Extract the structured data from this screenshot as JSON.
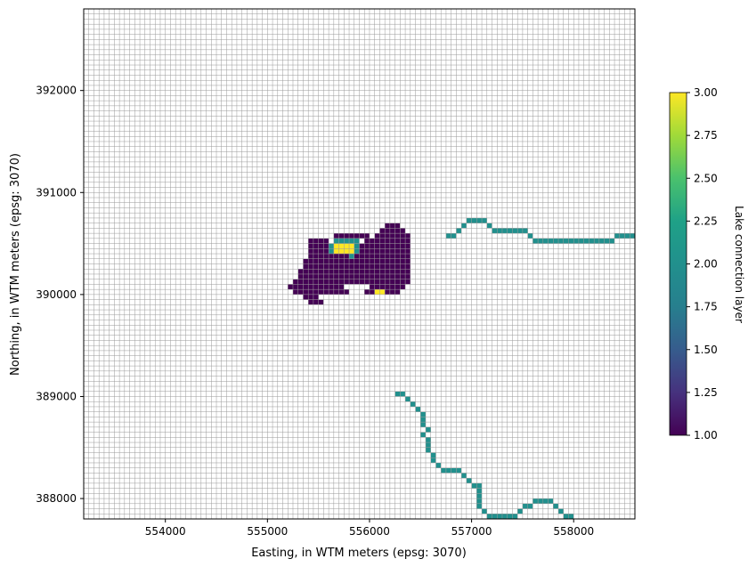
{
  "chart_data": {
    "type": "heatmap",
    "xlabel": "Easting, in WTM meters (epsg: 3070)",
    "ylabel": "Northing, in WTM meters (epsg: 3070)",
    "colorbar_label": "Lake connection layer",
    "xlim": [
      553200,
      558600
    ],
    "ylim": [
      387800,
      392800
    ],
    "xticks": [
      554000,
      555000,
      556000,
      557000,
      558000
    ],
    "yticks": [
      388000,
      389000,
      390000,
      391000,
      392000
    ],
    "clim": [
      1.0,
      3.0
    ],
    "colorbar_ticks": [
      "1.00",
      "1.25",
      "1.50",
      "1.75",
      "2.00",
      "2.25",
      "2.50",
      "2.75",
      "3.00"
    ],
    "colormap": "viridis",
    "colors": {
      "layer1": "#440154",
      "layer2": "#21908d",
      "layer3": "#fde725",
      "gridline": "#9a9a9a"
    },
    "grid": true,
    "cell_size_m": 50,
    "cells": {
      "layer1": [
        [
          555650,
          390550
        ],
        [
          555700,
          390550
        ],
        [
          555750,
          390550
        ],
        [
          555800,
          390550
        ],
        [
          555850,
          390550
        ],
        [
          555900,
          390550
        ],
        [
          555950,
          390550
        ],
        [
          556150,
          390650
        ],
        [
          556200,
          390650
        ],
        [
          556250,
          390650
        ],
        [
          556100,
          390600
        ],
        [
          556150,
          390600
        ],
        [
          556200,
          390600
        ],
        [
          556250,
          390600
        ],
        [
          556300,
          390600
        ],
        [
          556050,
          390550
        ],
        [
          556100,
          390550
        ],
        [
          556150,
          390550
        ],
        [
          556200,
          390550
        ],
        [
          556250,
          390550
        ],
        [
          556300,
          390550
        ],
        [
          556350,
          390550
        ],
        [
          555400,
          390500
        ],
        [
          555450,
          390500
        ],
        [
          555500,
          390500
        ],
        [
          555550,
          390500
        ],
        [
          555400,
          390450
        ],
        [
          555450,
          390450
        ],
        [
          555500,
          390450
        ],
        [
          555550,
          390450
        ],
        [
          555400,
          390400
        ],
        [
          555450,
          390400
        ],
        [
          555500,
          390400
        ],
        [
          555550,
          390400
        ],
        [
          555400,
          390350
        ],
        [
          555450,
          390350
        ],
        [
          555500,
          390350
        ],
        [
          555550,
          390350
        ],
        [
          555600,
          390350
        ],
        [
          555650,
          390350
        ],
        [
          555700,
          390350
        ],
        [
          555750,
          390350
        ],
        [
          555350,
          390300
        ],
        [
          555400,
          390300
        ],
        [
          555450,
          390300
        ],
        [
          555500,
          390300
        ],
        [
          555550,
          390300
        ],
        [
          555600,
          390300
        ],
        [
          555650,
          390300
        ],
        [
          555700,
          390300
        ],
        [
          555750,
          390300
        ],
        [
          555800,
          390300
        ],
        [
          555350,
          390250
        ],
        [
          555400,
          390250
        ],
        [
          555450,
          390250
        ],
        [
          555500,
          390250
        ],
        [
          555550,
          390250
        ],
        [
          555600,
          390250
        ],
        [
          555650,
          390250
        ],
        [
          555700,
          390250
        ],
        [
          555750,
          390250
        ],
        [
          555800,
          390250
        ],
        [
          555300,
          390200
        ],
        [
          555350,
          390200
        ],
        [
          555400,
          390200
        ],
        [
          555450,
          390200
        ],
        [
          555500,
          390200
        ],
        [
          555550,
          390200
        ],
        [
          555600,
          390200
        ],
        [
          555650,
          390200
        ],
        [
          555700,
          390200
        ],
        [
          555750,
          390200
        ],
        [
          555800,
          390200
        ],
        [
          555300,
          390150
        ],
        [
          555350,
          390150
        ],
        [
          555400,
          390150
        ],
        [
          555450,
          390150
        ],
        [
          555500,
          390150
        ],
        [
          555550,
          390150
        ],
        [
          555600,
          390150
        ],
        [
          555650,
          390150
        ],
        [
          555700,
          390150
        ],
        [
          555750,
          390150
        ],
        [
          555800,
          390150
        ],
        [
          555250,
          390100
        ],
        [
          555300,
          390100
        ],
        [
          555350,
          390100
        ],
        [
          555400,
          390100
        ],
        [
          555450,
          390100
        ],
        [
          555500,
          390100
        ],
        [
          555550,
          390100
        ],
        [
          555600,
          390100
        ],
        [
          555650,
          390100
        ],
        [
          555700,
          390100
        ],
        [
          555750,
          390100
        ],
        [
          555200,
          390050
        ],
        [
          555250,
          390050
        ],
        [
          555300,
          390050
        ],
        [
          555350,
          390050
        ],
        [
          555400,
          390050
        ],
        [
          555450,
          390050
        ],
        [
          555500,
          390050
        ],
        [
          555550,
          390050
        ],
        [
          555600,
          390050
        ],
        [
          555650,
          390050
        ],
        [
          555700,
          390050
        ],
        [
          555250,
          390000
        ],
        [
          555300,
          390000
        ],
        [
          555350,
          390000
        ],
        [
          555400,
          390000
        ],
        [
          555450,
          390000
        ],
        [
          555500,
          390000
        ],
        [
          555550,
          390000
        ],
        [
          555600,
          390000
        ],
        [
          555650,
          390000
        ],
        [
          555700,
          390000
        ],
        [
          555750,
          390000
        ],
        [
          555350,
          389950
        ],
        [
          555400,
          389950
        ],
        [
          555450,
          389950
        ],
        [
          555400,
          389900
        ],
        [
          555450,
          389900
        ],
        [
          555500,
          389900
        ],
        [
          555950,
          390500
        ],
        [
          556000,
          390500
        ],
        [
          556050,
          390500
        ],
        [
          556100,
          390500
        ],
        [
          556150,
          390500
        ],
        [
          556200,
          390500
        ],
        [
          556250,
          390500
        ],
        [
          556300,
          390500
        ],
        [
          556350,
          390500
        ],
        [
          555900,
          390450
        ],
        [
          555950,
          390450
        ],
        [
          556000,
          390450
        ],
        [
          556050,
          390450
        ],
        [
          556100,
          390450
        ],
        [
          556150,
          390450
        ],
        [
          556200,
          390450
        ],
        [
          556250,
          390450
        ],
        [
          556300,
          390450
        ],
        [
          556350,
          390450
        ],
        [
          555900,
          390400
        ],
        [
          555950,
          390400
        ],
        [
          556000,
          390400
        ],
        [
          556050,
          390400
        ],
        [
          556100,
          390400
        ],
        [
          556150,
          390400
        ],
        [
          556200,
          390400
        ],
        [
          556250,
          390400
        ],
        [
          556300,
          390400
        ],
        [
          556350,
          390400
        ],
        [
          555850,
          390350
        ],
        [
          555900,
          390350
        ],
        [
          555950,
          390350
        ],
        [
          556000,
          390350
        ],
        [
          556050,
          390350
        ],
        [
          556100,
          390350
        ],
        [
          556150,
          390350
        ],
        [
          556200,
          390350
        ],
        [
          556250,
          390350
        ],
        [
          556300,
          390350
        ],
        [
          556350,
          390350
        ],
        [
          555850,
          390300
        ],
        [
          555900,
          390300
        ],
        [
          555950,
          390300
        ],
        [
          556000,
          390300
        ],
        [
          556050,
          390300
        ],
        [
          556100,
          390300
        ],
        [
          556150,
          390300
        ],
        [
          556200,
          390300
        ],
        [
          556250,
          390300
        ],
        [
          556300,
          390300
        ],
        [
          556350,
          390300
        ],
        [
          555850,
          390250
        ],
        [
          555900,
          390250
        ],
        [
          555950,
          390250
        ],
        [
          556000,
          390250
        ],
        [
          556050,
          390250
        ],
        [
          556100,
          390250
        ],
        [
          556150,
          390250
        ],
        [
          556200,
          390250
        ],
        [
          556250,
          390250
        ],
        [
          556300,
          390250
        ],
        [
          556350,
          390250
        ],
        [
          555850,
          390200
        ],
        [
          555900,
          390200
        ],
        [
          555950,
          390200
        ],
        [
          556000,
          390200
        ],
        [
          556050,
          390200
        ],
        [
          556100,
          390200
        ],
        [
          556150,
          390200
        ],
        [
          556200,
          390200
        ],
        [
          556250,
          390200
        ],
        [
          556300,
          390200
        ],
        [
          556350,
          390200
        ],
        [
          555850,
          390150
        ],
        [
          555900,
          390150
        ],
        [
          555950,
          390150
        ],
        [
          556000,
          390150
        ],
        [
          556050,
          390150
        ],
        [
          556100,
          390150
        ],
        [
          556150,
          390150
        ],
        [
          556200,
          390150
        ],
        [
          556250,
          390150
        ],
        [
          556300,
          390150
        ],
        [
          556350,
          390150
        ],
        [
          555800,
          390100
        ],
        [
          555850,
          390100
        ],
        [
          555900,
          390100
        ],
        [
          555950,
          390100
        ],
        [
          556000,
          390100
        ],
        [
          556050,
          390100
        ],
        [
          556100,
          390100
        ],
        [
          556150,
          390100
        ],
        [
          556200,
          390100
        ],
        [
          556250,
          390100
        ],
        [
          556300,
          390100
        ],
        [
          556350,
          390100
        ],
        [
          556000,
          390050
        ],
        [
          556050,
          390050
        ],
        [
          556100,
          390050
        ],
        [
          556150,
          390050
        ],
        [
          556200,
          390050
        ],
        [
          556250,
          390050
        ],
        [
          556300,
          390050
        ],
        [
          555950,
          390000
        ],
        [
          556000,
          390000
        ],
        [
          556150,
          390000
        ],
        [
          556200,
          390000
        ],
        [
          556250,
          390000
        ]
      ],
      "layer2": [
        [
          555650,
          390500
        ],
        [
          555700,
          390500
        ],
        [
          555750,
          390500
        ],
        [
          555800,
          390500
        ],
        [
          555850,
          390500
        ],
        [
          555600,
          390450
        ],
        [
          555850,
          390450
        ],
        [
          555600,
          390400
        ],
        [
          555850,
          390400
        ],
        [
          555800,
          390350
        ],
        [
          556750,
          390550
        ],
        [
          556800,
          390550
        ],
        [
          556850,
          390600
        ],
        [
          556900,
          390650
        ],
        [
          556950,
          390700
        ],
        [
          557000,
          390700
        ],
        [
          557050,
          390700
        ],
        [
          557100,
          390700
        ],
        [
          557150,
          390650
        ],
        [
          557200,
          390600
        ],
        [
          557250,
          390600
        ],
        [
          557300,
          390600
        ],
        [
          557350,
          390600
        ],
        [
          557400,
          390600
        ],
        [
          557450,
          390600
        ],
        [
          557500,
          390600
        ],
        [
          557550,
          390550
        ],
        [
          557600,
          390500
        ],
        [
          557650,
          390500
        ],
        [
          557700,
          390500
        ],
        [
          557750,
          390500
        ],
        [
          557800,
          390500
        ],
        [
          557850,
          390500
        ],
        [
          557900,
          390500
        ],
        [
          557950,
          390500
        ],
        [
          558000,
          390500
        ],
        [
          558050,
          390500
        ],
        [
          558100,
          390500
        ],
        [
          558150,
          390500
        ],
        [
          558200,
          390500
        ],
        [
          558250,
          390500
        ],
        [
          558300,
          390500
        ],
        [
          558350,
          390500
        ],
        [
          558400,
          390550
        ],
        [
          558450,
          390550
        ],
        [
          558500,
          390550
        ],
        [
          558550,
          390550
        ],
        [
          556250,
          389000
        ],
        [
          556300,
          389000
        ],
        [
          556350,
          388950
        ],
        [
          556400,
          388900
        ],
        [
          556450,
          388850
        ],
        [
          556500,
          388800
        ],
        [
          556500,
          388750
        ],
        [
          556500,
          388700
        ],
        [
          556500,
          388600
        ],
        [
          556550,
          388650
        ],
        [
          556550,
          388550
        ],
        [
          556550,
          388500
        ],
        [
          556550,
          388450
        ],
        [
          556600,
          388400
        ],
        [
          556600,
          388350
        ],
        [
          556650,
          388300
        ],
        [
          556700,
          388250
        ],
        [
          556750,
          388250
        ],
        [
          556800,
          388250
        ],
        [
          556850,
          388250
        ],
        [
          556900,
          388200
        ],
        [
          556950,
          388150
        ],
        [
          557000,
          388100
        ],
        [
          557050,
          388100
        ],
        [
          557050,
          388050
        ],
        [
          557050,
          388000
        ],
        [
          557050,
          387950
        ],
        [
          557050,
          387900
        ],
        [
          557100,
          387850
        ],
        [
          557150,
          387800
        ],
        [
          557200,
          387800
        ],
        [
          557250,
          387800
        ],
        [
          557300,
          387800
        ],
        [
          557350,
          387800
        ],
        [
          557400,
          387800
        ],
        [
          557450,
          387850
        ],
        [
          557500,
          387900
        ],
        [
          557550,
          387900
        ],
        [
          557600,
          387950
        ],
        [
          557650,
          387950
        ],
        [
          557700,
          387950
        ],
        [
          557750,
          387950
        ],
        [
          557800,
          387900
        ],
        [
          557850,
          387850
        ],
        [
          557900,
          387800
        ],
        [
          557950,
          387800
        ]
      ],
      "layer3": [
        [
          555650,
          390450
        ],
        [
          555700,
          390450
        ],
        [
          555750,
          390450
        ],
        [
          555800,
          390450
        ],
        [
          555650,
          390400
        ],
        [
          555700,
          390400
        ],
        [
          555750,
          390400
        ],
        [
          555800,
          390400
        ],
        [
          556050,
          390000
        ],
        [
          556100,
          390000
        ]
      ]
    }
  }
}
